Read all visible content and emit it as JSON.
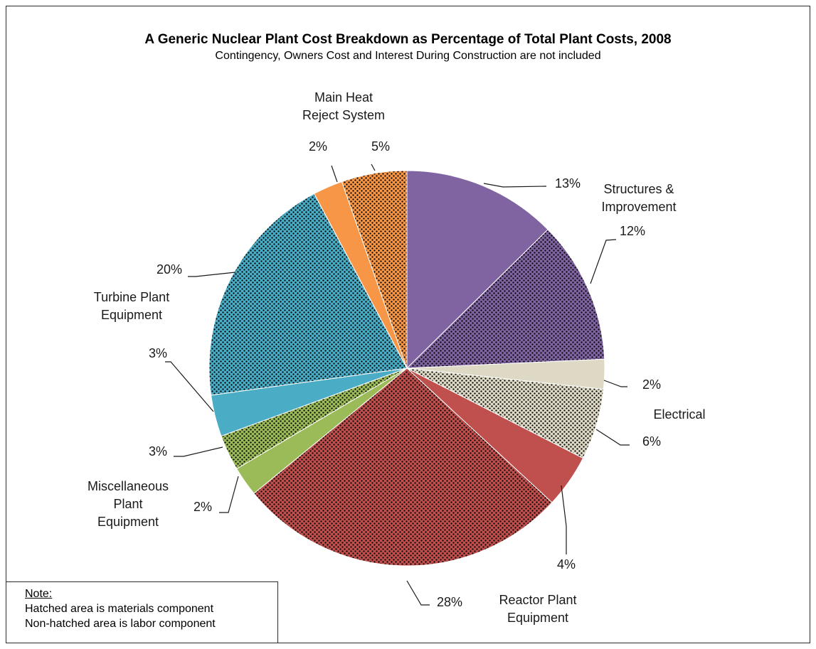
{
  "chart_data": {
    "type": "pie",
    "title": "A Generic Nuclear Plant Cost Breakdown as Percentage of Total Plant Costs, 2008",
    "subtitle": "Contingency, Owners Cost and Interest During Construction are not included",
    "categories": [
      "Structures & Improvement",
      "Electrical",
      "Reactor Plant Equipment",
      "Miscellaneous Plant Equipment",
      "Turbine Plant Equipment",
      "Main Heat Reject System"
    ],
    "slices": [
      {
        "category": "Structures & Improvement",
        "component": "labor",
        "label": "13%",
        "value": 13,
        "color": "#8064A2",
        "hatched": false
      },
      {
        "category": "Structures & Improvement",
        "component": "materials",
        "label": "12%",
        "value": 12,
        "color": "#8064A2",
        "hatched": true
      },
      {
        "category": "Electrical",
        "component": "labor",
        "label": "2%",
        "value": 2.5,
        "color": "#DDD9C4",
        "hatched": false
      },
      {
        "category": "Electrical",
        "component": "materials",
        "label": "6%",
        "value": 6,
        "color": "#DDD9C4",
        "hatched": true
      },
      {
        "category": "Reactor Plant Equipment",
        "component": "labor",
        "label": "4%",
        "value": 4.5,
        "color": "#C0504D",
        "hatched": false
      },
      {
        "category": "Reactor Plant Equipment",
        "component": "materials",
        "label": "28%",
        "value": 28,
        "color": "#C0504D",
        "hatched": true
      },
      {
        "category": "Miscellaneous Plant Equipment",
        "component": "labor",
        "label": "2%",
        "value": 2.5,
        "color": "#9BBB59",
        "hatched": false
      },
      {
        "category": "Miscellaneous Plant Equipment",
        "component": "materials",
        "label": "3%",
        "value": 3,
        "color": "#9BBB59",
        "hatched": true
      },
      {
        "category": "Turbine Plant Equipment",
        "component": "labor",
        "label": "3%",
        "value": 3.5,
        "color": "#4BACC6",
        "hatched": false
      },
      {
        "category": "Turbine Plant Equipment",
        "component": "materials",
        "label": "20%",
        "value": 20,
        "color": "#4BACC6",
        "hatched": true
      },
      {
        "category": "Main Heat Reject System",
        "component": "labor",
        "label": "2%",
        "value": 2.5,
        "color": "#F79646",
        "hatched": false
      },
      {
        "category": "Main Heat Reject System",
        "component": "materials",
        "label": "5%",
        "value": 5.5,
        "color": "#F79646",
        "hatched": true
      }
    ],
    "category_labels": [
      {
        "lines": [
          "Structures &",
          "Improvement"
        ]
      },
      {
        "lines": [
          "Electrical"
        ]
      },
      {
        "lines": [
          "Reactor Plant",
          "Equipment"
        ]
      },
      {
        "lines": [
          "Miscellaneous",
          "Plant",
          "Equipment"
        ]
      },
      {
        "lines": [
          "Turbine Plant",
          "Equipment"
        ]
      },
      {
        "lines": [
          "Main Heat",
          "Reject System"
        ]
      }
    ],
    "legend": "none"
  },
  "note": {
    "heading": "Note:",
    "line1": "Hatched area is materials component",
    "line2": "Non-hatched area is labor component"
  }
}
